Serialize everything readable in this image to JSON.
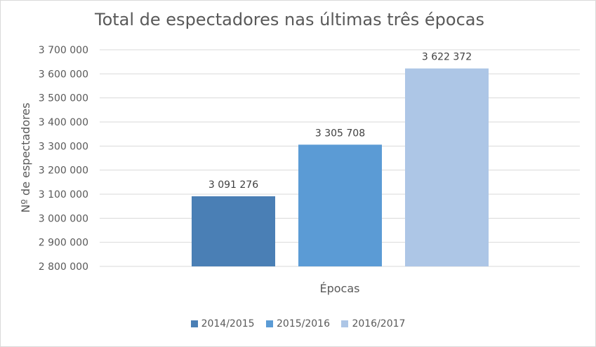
{
  "chart_data": {
    "type": "bar",
    "title": "Total de espectadores nas últimas três épocas",
    "xlabel": "Épocas",
    "ylabel": "Nº de espectadores",
    "ylim": [
      2800000,
      3700000
    ],
    "yticks": [
      2800000,
      2900000,
      3000000,
      3100000,
      3200000,
      3300000,
      3400000,
      3500000,
      3600000,
      3700000
    ],
    "ytick_labels": [
      "2 800 000",
      "2 900 000",
      "3 000 000",
      "3 100 000",
      "3 200 000",
      "3 300 000",
      "3 400 000",
      "3 500 000",
      "3 600 000",
      "3 700 000"
    ],
    "grid": true,
    "legend_position": "bottom",
    "series": [
      {
        "name": "2014/2015",
        "value": 3091276,
        "label": "3 091 276",
        "color": "#4a7fb5"
      },
      {
        "name": "2015/2016",
        "value": 3305708,
        "label": "3 305 708",
        "color": "#5b9bd5"
      },
      {
        "name": "2016/2017",
        "value": 3622372,
        "label": "3 622 372",
        "color": "#adc6e6"
      }
    ]
  }
}
